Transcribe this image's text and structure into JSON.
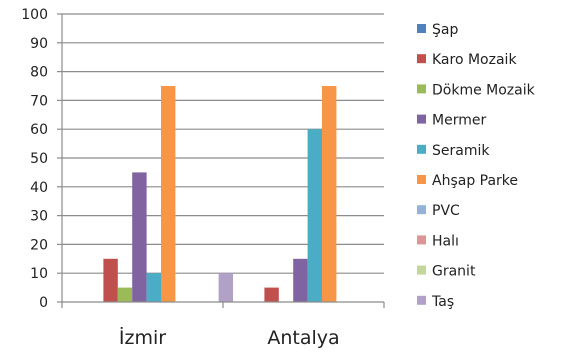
{
  "chart_data": {
    "type": "bar",
    "categories": [
      "İzmir",
      "Antalya"
    ],
    "series": [
      {
        "name": "Şap",
        "color": "#4F81BD",
        "values": [
          0,
          0
        ]
      },
      {
        "name": "Karo Mozaik",
        "color": "#C0504D",
        "values": [
          15,
          5
        ]
      },
      {
        "name": "Dökme Mozaik",
        "color": "#9BBB59",
        "values": [
          5,
          0
        ]
      },
      {
        "name": "Mermer",
        "color": "#8064A2",
        "values": [
          45,
          15
        ]
      },
      {
        "name": "Seramik",
        "color": "#4BACC6",
        "values": [
          10,
          60
        ]
      },
      {
        "name": "Ahşap Parke",
        "color": "#F79646",
        "values": [
          75,
          75
        ]
      },
      {
        "name": "PVC",
        "color": "#95B3D7",
        "values": [
          0,
          0
        ]
      },
      {
        "name": "Halı",
        "color": "#D99694",
        "values": [
          0,
          0
        ]
      },
      {
        "name": "Granit",
        "color": "#C3D69B",
        "values": [
          0,
          0
        ]
      },
      {
        "name": "Taş",
        "color": "#B2A1C7",
        "values": [
          10,
          0
        ]
      }
    ],
    "yticks": [
      "0",
      "10",
      "20",
      "30",
      "40",
      "50",
      "60",
      "70",
      "80",
      "90",
      "100"
    ],
    "ylim": [
      0,
      100
    ],
    "grid": true,
    "legend_position": "right",
    "title": "",
    "xlabel": "",
    "ylabel": ""
  }
}
